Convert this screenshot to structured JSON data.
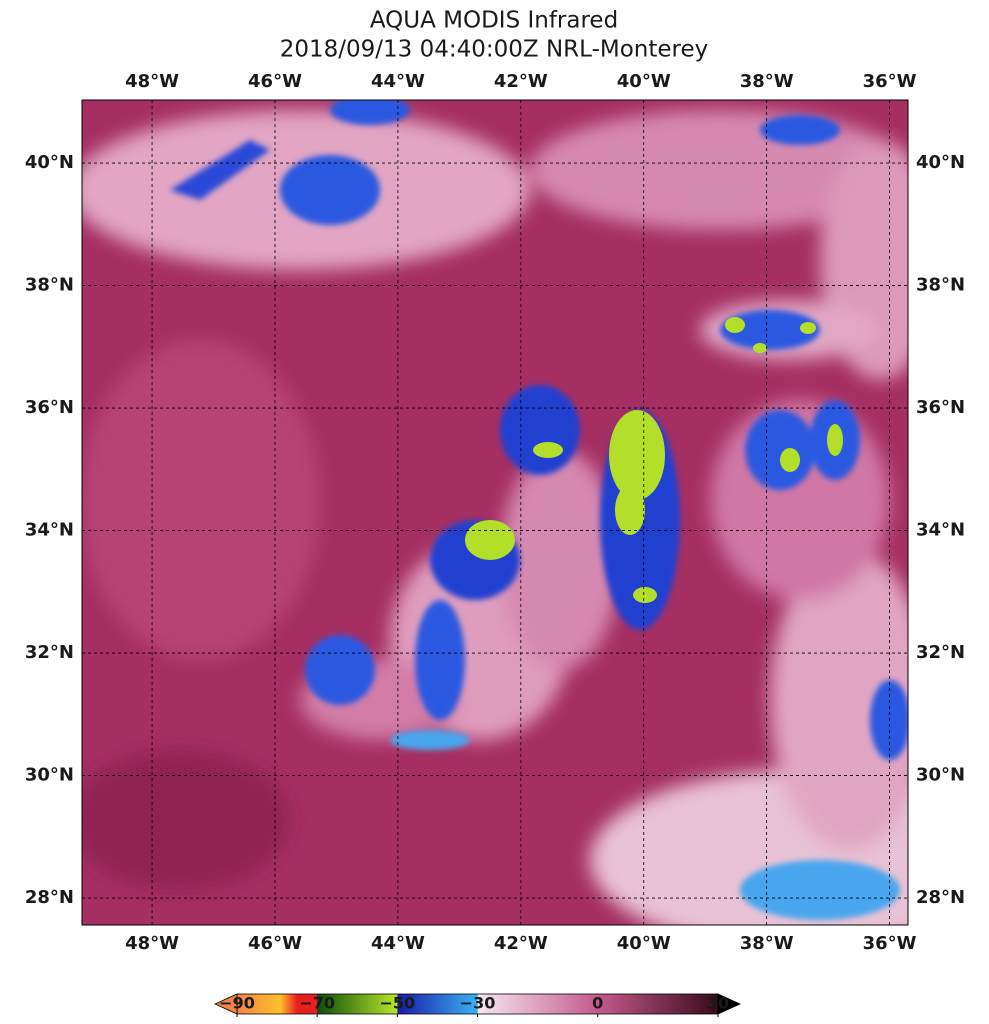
{
  "title": "AQUA MODIS Infrared",
  "subtitle": "2018/09/13 04:40:00Z NRL-Monterey",
  "map": {
    "xlim": [
      -49.14,
      -35.7
    ],
    "ylim": [
      27.56,
      41.03
    ],
    "xticks": [
      {
        "value": -48,
        "label": "48°W"
      },
      {
        "value": -46,
        "label": "46°W"
      },
      {
        "value": -44,
        "label": "44°W"
      },
      {
        "value": -42,
        "label": "42°W"
      },
      {
        "value": -40,
        "label": "40°W"
      },
      {
        "value": -38,
        "label": "38°W"
      },
      {
        "value": -36,
        "label": "36°W"
      }
    ],
    "yticks": [
      {
        "value": 40,
        "label": "40°N"
      },
      {
        "value": 38,
        "label": "38°N"
      },
      {
        "value": 36,
        "label": "36°N"
      },
      {
        "value": 34,
        "label": "34°N"
      },
      {
        "value": 32,
        "label": "32°N"
      },
      {
        "value": 30,
        "label": "30°N"
      },
      {
        "value": 28,
        "label": "28°N"
      }
    ],
    "grid": true
  },
  "colorbar": {
    "lim": [
      -90,
      30
    ],
    "ticks": [
      {
        "value": -90,
        "label": "−90"
      },
      {
        "value": -70,
        "label": "−70"
      },
      {
        "value": -50,
        "label": "−50"
      },
      {
        "value": -30,
        "label": "−30"
      },
      0,
      30
    ]
  }
}
